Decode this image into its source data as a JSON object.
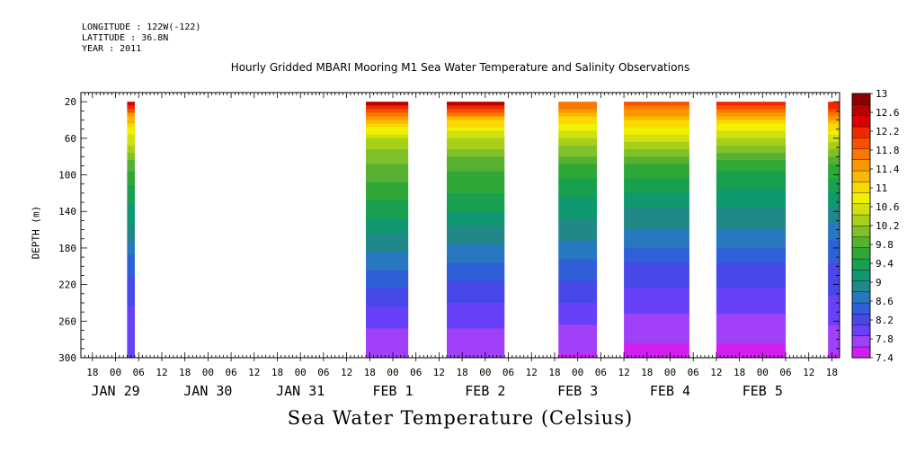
{
  "header": {
    "longitude": "LONGITUDE : 122W(-122)",
    "latitude": "LATITUDE : 36.8N",
    "year": "YEAR : 2011"
  },
  "chart_data": {
    "type": "heatmap",
    "title": "Hourly Gridded MBARI Mooring M1 Sea Water Temperature and Salinity Observations",
    "xlabel": "Sea Water Temperature (Celsius)",
    "ylabel": "DEPTH (m)",
    "ylim": [
      300,
      10
    ],
    "y_reversed": true,
    "y_ticks": [
      20,
      60,
      100,
      140,
      180,
      220,
      260,
      300
    ],
    "x_range_hours": [
      "2011-01-28T15:00",
      "2011-02-05T20:00"
    ],
    "x_hour_ticks": [
      {
        "label": "18",
        "time": "2011-01-28T18:00"
      },
      {
        "label": "00",
        "time": "2011-01-29T00:00"
      },
      {
        "label": "06",
        "time": "2011-01-29T06:00"
      },
      {
        "label": "12",
        "time": "2011-01-29T12:00"
      },
      {
        "label": "18",
        "time": "2011-01-29T18:00"
      },
      {
        "label": "00",
        "time": "2011-01-30T00:00"
      },
      {
        "label": "06",
        "time": "2011-01-30T06:00"
      },
      {
        "label": "12",
        "time": "2011-01-30T12:00"
      },
      {
        "label": "18",
        "time": "2011-01-30T18:00"
      },
      {
        "label": "00",
        "time": "2011-01-31T00:00"
      },
      {
        "label": "06",
        "time": "2011-01-31T06:00"
      },
      {
        "label": "12",
        "time": "2011-01-31T12:00"
      },
      {
        "label": "18",
        "time": "2011-01-31T18:00"
      },
      {
        "label": "00",
        "time": "2011-02-01T00:00"
      },
      {
        "label": "06",
        "time": "2011-02-01T06:00"
      },
      {
        "label": "12",
        "time": "2011-02-01T12:00"
      },
      {
        "label": "18",
        "time": "2011-02-01T18:00"
      },
      {
        "label": "00",
        "time": "2011-02-02T00:00"
      },
      {
        "label": "06",
        "time": "2011-02-02T06:00"
      },
      {
        "label": "12",
        "time": "2011-02-02T12:00"
      },
      {
        "label": "18",
        "time": "2011-02-02T18:00"
      },
      {
        "label": "00",
        "time": "2011-02-03T00:00"
      },
      {
        "label": "06",
        "time": "2011-02-03T06:00"
      },
      {
        "label": "12",
        "time": "2011-02-03T12:00"
      },
      {
        "label": "18",
        "time": "2011-02-03T18:00"
      },
      {
        "label": "00",
        "time": "2011-02-04T00:00"
      },
      {
        "label": "06",
        "time": "2011-02-04T06:00"
      },
      {
        "label": "12",
        "time": "2011-02-04T12:00"
      },
      {
        "label": "18",
        "time": "2011-02-04T18:00"
      },
      {
        "label": "00",
        "time": "2011-02-05T00:00"
      },
      {
        "label": "06",
        "time": "2011-02-05T06:00"
      },
      {
        "label": "12",
        "time": "2011-02-05T12:00"
      },
      {
        "label": "18",
        "time": "2011-02-05T18:00"
      }
    ],
    "x_day_labels": [
      {
        "label": "JAN 29",
        "time": "2011-01-29T00:00"
      },
      {
        "label": "JAN 30",
        "time": "2011-01-30T00:00"
      },
      {
        "label": "JAN 31",
        "time": "2011-01-31T00:00"
      },
      {
        "label": "FEB  1",
        "time": "2011-02-01T00:00"
      },
      {
        "label": "FEB  2",
        "time": "2011-02-02T00:00"
      },
      {
        "label": "FEB  3",
        "time": "2011-02-03T00:00"
      },
      {
        "label": "FEB  4",
        "time": "2011-02-04T00:00"
      },
      {
        "label": "FEB  5",
        "time": "2011-02-05T00:00"
      }
    ],
    "data_segments": [
      {
        "start": "2011-01-29T03:00",
        "end": "2011-01-29T05:00",
        "profile": [
          [
            20,
            12.5
          ],
          [
            40,
            11.2
          ],
          [
            60,
            10.6
          ],
          [
            90,
            9.8
          ],
          [
            130,
            9.3
          ],
          [
            160,
            9.0
          ],
          [
            200,
            8.4
          ],
          [
            260,
            8.0
          ],
          [
            300,
            7.9
          ]
        ]
      },
      {
        "start": "2011-01-31T17:00",
        "end": "2011-02-01T04:00",
        "profile": [
          [
            20,
            12.7
          ],
          [
            40,
            11.3
          ],
          [
            60,
            10.4
          ],
          [
            90,
            9.9
          ],
          [
            130,
            9.5
          ],
          [
            160,
            9.1
          ],
          [
            200,
            8.6
          ],
          [
            260,
            7.9
          ],
          [
            300,
            7.7
          ]
        ]
      },
      {
        "start": "2011-02-01T14:00",
        "end": "2011-02-02T05:00",
        "profile": [
          [
            20,
            12.7
          ],
          [
            40,
            11.2
          ],
          [
            60,
            10.4
          ],
          [
            90,
            9.8
          ],
          [
            130,
            9.4
          ],
          [
            160,
            9.0
          ],
          [
            200,
            8.5
          ],
          [
            260,
            7.9
          ],
          [
            300,
            7.7
          ]
        ]
      },
      {
        "start": "2011-02-02T19:00",
        "end": "2011-02-03T05:00",
        "profile": [
          [
            20,
            11.9
          ],
          [
            40,
            11.0
          ],
          [
            60,
            10.4
          ],
          [
            90,
            9.7
          ],
          [
            130,
            9.2
          ],
          [
            160,
            8.9
          ],
          [
            200,
            8.5
          ],
          [
            260,
            7.9
          ],
          [
            300,
            7.6
          ]
        ]
      },
      {
        "start": "2011-02-03T12:00",
        "end": "2011-02-04T05:00",
        "profile": [
          [
            20,
            12.0
          ],
          [
            40,
            11.1
          ],
          [
            60,
            10.5
          ],
          [
            90,
            9.7
          ],
          [
            130,
            9.1
          ],
          [
            160,
            8.8
          ],
          [
            200,
            8.3
          ],
          [
            260,
            7.8
          ],
          [
            300,
            7.5
          ]
        ]
      },
      {
        "start": "2011-02-04T12:00",
        "end": "2011-02-05T06:00",
        "profile": [
          [
            20,
            12.2
          ],
          [
            40,
            11.1
          ],
          [
            60,
            10.4
          ],
          [
            90,
            9.6
          ],
          [
            130,
            9.1
          ],
          [
            160,
            8.8
          ],
          [
            200,
            8.3
          ],
          [
            260,
            7.8
          ],
          [
            300,
            7.5
          ]
        ]
      },
      {
        "start": "2011-02-05T17:00",
        "end": "2011-02-05T20:00",
        "profile": [
          [
            20,
            12.4
          ],
          [
            40,
            11.3
          ],
          [
            60,
            10.5
          ],
          [
            90,
            9.7
          ],
          [
            130,
            9.1
          ],
          [
            160,
            8.7
          ],
          [
            200,
            8.3
          ],
          [
            260,
            7.9
          ],
          [
            300,
            7.6
          ]
        ]
      }
    ],
    "colorbar": {
      "min": 7.4,
      "max": 13,
      "step": 0.2,
      "labels": [
        "13",
        "12.6",
        "12.2",
        "11.8",
        "11.4",
        "11",
        "10.6",
        "10.2",
        "9.8",
        "9.4",
        "9",
        "8.6",
        "8.2",
        "7.8",
        "7.4"
      ]
    },
    "grid": false
  },
  "colors": {
    "palette": [
      "#d020f0",
      "#a040f8",
      "#6840f8",
      "#4848e8",
      "#3060d8",
      "#2878c0",
      "#208888",
      "#109870",
      "#18a050",
      "#30a838",
      "#58b030",
      "#80c028",
      "#a8d018",
      "#d0e010",
      "#f0f000",
      "#f8d800",
      "#f8b800",
      "#f89800",
      "#f87800",
      "#f85000",
      "#f02800",
      "#d80000",
      "#b80000",
      "#900000"
    ]
  }
}
